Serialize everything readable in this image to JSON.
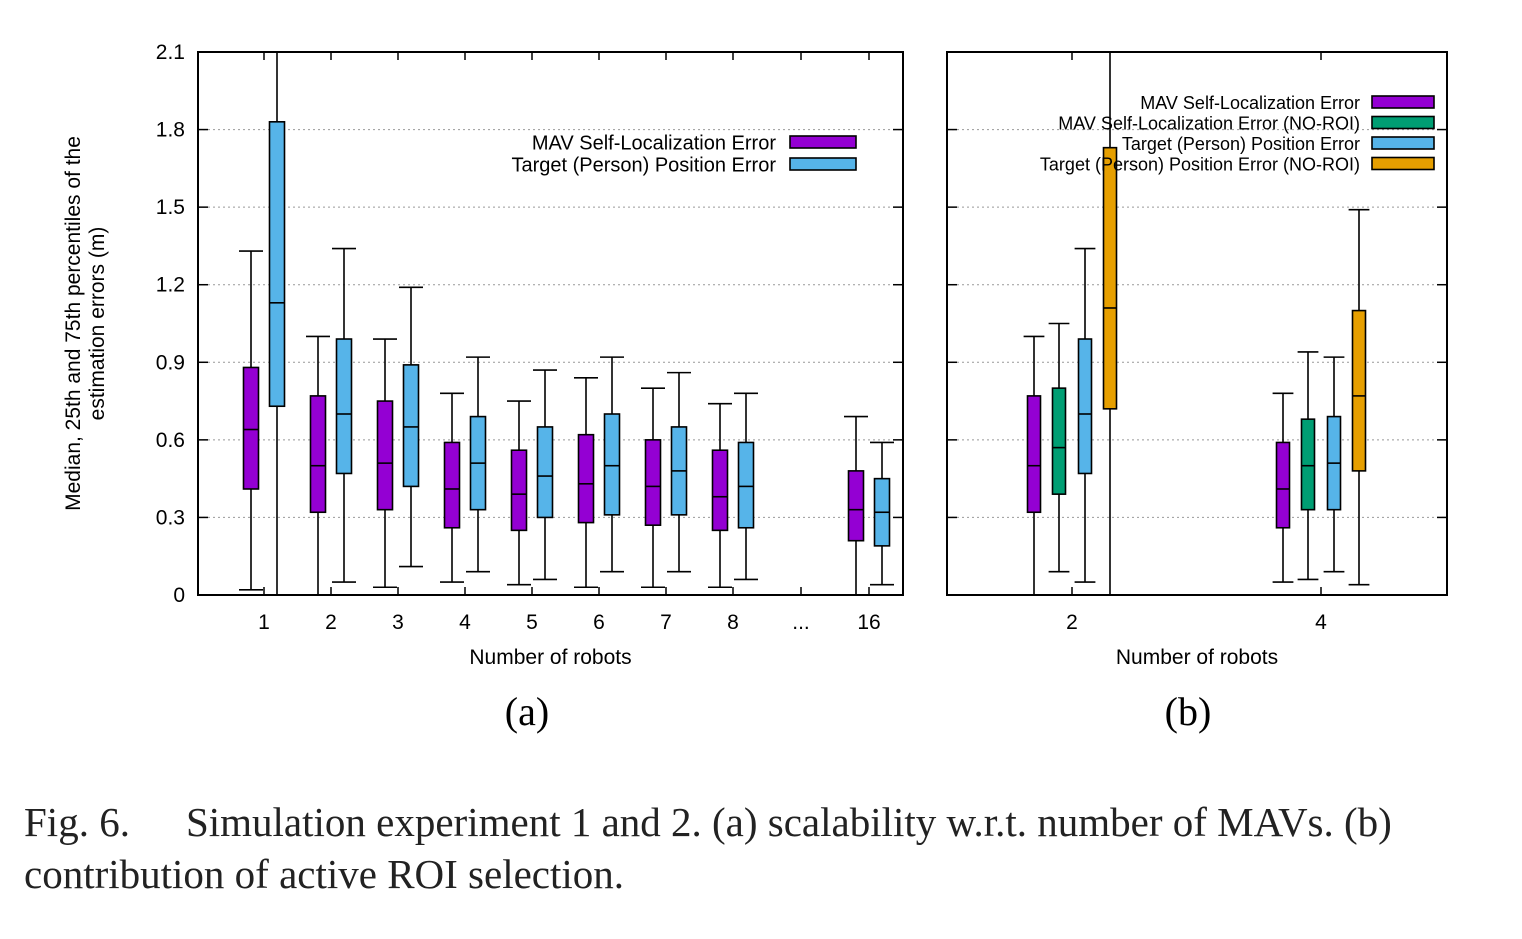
{
  "colors": {
    "mav": "#9400D3",
    "mav_noroi": "#009E73",
    "target": "#56B4E9",
    "target_noroi": "#E69F00"
  },
  "chart_data": [
    {
      "type": "box",
      "panel_label": "(a)",
      "ylabel_lines": [
        "Median, 25th and 75th percentiles of the",
        "estimation errors (m)"
      ],
      "xlabel": "Number of robots",
      "ylim": [
        0,
        2.1
      ],
      "yticks": [
        "0",
        "0.3",
        "0.6",
        "0.9",
        "1.2",
        "1.5",
        "1.8",
        "2.1"
      ],
      "grid": true,
      "legend_position": "top-right",
      "categories": [
        "1",
        "2",
        "3",
        "4",
        "5",
        "6",
        "7",
        "8",
        "...",
        "16"
      ],
      "series": [
        {
          "name": "MAV Self-Localization Error",
          "color_key": "mav",
          "boxes": [
            {
              "x": "1",
              "min": 0.02,
              "q1": 0.41,
              "median": 0.64,
              "q3": 0.88,
              "max": 1.33
            },
            {
              "x": "2",
              "min": 0.0,
              "q1": 0.32,
              "median": 0.5,
              "q3": 0.77,
              "max": 1.0
            },
            {
              "x": "3",
              "min": 0.03,
              "q1": 0.33,
              "median": 0.51,
              "q3": 0.75,
              "max": 0.99
            },
            {
              "x": "4",
              "min": 0.05,
              "q1": 0.26,
              "median": 0.41,
              "q3": 0.59,
              "max": 0.78
            },
            {
              "x": "5",
              "min": 0.04,
              "q1": 0.25,
              "median": 0.39,
              "q3": 0.56,
              "max": 0.75
            },
            {
              "x": "6",
              "min": 0.03,
              "q1": 0.28,
              "median": 0.43,
              "q3": 0.62,
              "max": 0.84
            },
            {
              "x": "7",
              "min": 0.03,
              "q1": 0.27,
              "median": 0.42,
              "q3": 0.6,
              "max": 0.8
            },
            {
              "x": "8",
              "min": 0.03,
              "q1": 0.25,
              "median": 0.38,
              "q3": 0.56,
              "max": 0.74
            },
            {
              "x": "16",
              "min": 0.0,
              "q1": 0.21,
              "median": 0.33,
              "q3": 0.48,
              "max": 0.69
            }
          ]
        },
        {
          "name": "Target (Person) Position Error",
          "color_key": "target",
          "boxes": [
            {
              "x": "1",
              "min": 0.0,
              "q1": 0.73,
              "median": 1.13,
              "q3": 1.83,
              "max": 2.1
            },
            {
              "x": "2",
              "min": 0.05,
              "q1": 0.47,
              "median": 0.7,
              "q3": 0.99,
              "max": 1.34
            },
            {
              "x": "3",
              "min": 0.11,
              "q1": 0.42,
              "median": 0.65,
              "q3": 0.89,
              "max": 1.19
            },
            {
              "x": "4",
              "min": 0.09,
              "q1": 0.33,
              "median": 0.51,
              "q3": 0.69,
              "max": 0.92
            },
            {
              "x": "5",
              "min": 0.06,
              "q1": 0.3,
              "median": 0.46,
              "q3": 0.65,
              "max": 0.87
            },
            {
              "x": "6",
              "min": 0.09,
              "q1": 0.31,
              "median": 0.5,
              "q3": 0.7,
              "max": 0.92
            },
            {
              "x": "7",
              "min": 0.09,
              "q1": 0.31,
              "median": 0.48,
              "q3": 0.65,
              "max": 0.86
            },
            {
              "x": "8",
              "min": 0.06,
              "q1": 0.26,
              "median": 0.42,
              "q3": 0.59,
              "max": 0.78
            },
            {
              "x": "16",
              "min": 0.04,
              "q1": 0.19,
              "median": 0.32,
              "q3": 0.45,
              "max": 0.59
            }
          ]
        }
      ]
    },
    {
      "type": "box",
      "panel_label": "(b)",
      "xlabel": "Number of robots",
      "ylim": [
        0,
        2.1
      ],
      "grid": true,
      "legend_position": "top-right",
      "categories": [
        "2",
        "4"
      ],
      "series": [
        {
          "name": "MAV Self-Localization Error",
          "color_key": "mav",
          "boxes": [
            {
              "x": "2",
              "min": 0.0,
              "q1": 0.32,
              "median": 0.5,
              "q3": 0.77,
              "max": 1.0
            },
            {
              "x": "4",
              "min": 0.05,
              "q1": 0.26,
              "median": 0.41,
              "q3": 0.59,
              "max": 0.78
            }
          ]
        },
        {
          "name": "MAV Self-Localization Error (NO-ROI)",
          "color_key": "mav_noroi",
          "boxes": [
            {
              "x": "2",
              "min": 0.09,
              "q1": 0.39,
              "median": 0.57,
              "q3": 0.8,
              "max": 1.05
            },
            {
              "x": "4",
              "min": 0.06,
              "q1": 0.33,
              "median": 0.5,
              "q3": 0.68,
              "max": 0.94
            }
          ]
        },
        {
          "name": "Target (Person) Position Error",
          "color_key": "target",
          "boxes": [
            {
              "x": "2",
              "min": 0.05,
              "q1": 0.47,
              "median": 0.7,
              "q3": 0.99,
              "max": 1.34
            },
            {
              "x": "4",
              "min": 0.09,
              "q1": 0.33,
              "median": 0.51,
              "q3": 0.69,
              "max": 0.92
            }
          ]
        },
        {
          "name": "Target (Person) Position Error (NO-ROI)",
          "color_key": "target_noroi",
          "boxes": [
            {
              "x": "2",
              "min": 0.0,
              "q1": 0.72,
              "median": 1.11,
              "q3": 1.73,
              "max": 2.1
            },
            {
              "x": "4",
              "min": 0.04,
              "q1": 0.48,
              "median": 0.77,
              "q3": 1.1,
              "max": 1.49
            }
          ]
        }
      ]
    }
  ],
  "caption": {
    "number": "Fig. 6.",
    "text": "Simulation experiment 1 and 2. (a) scalability w.r.t. number of MAVs. (b) contribution of active ROI selection."
  }
}
